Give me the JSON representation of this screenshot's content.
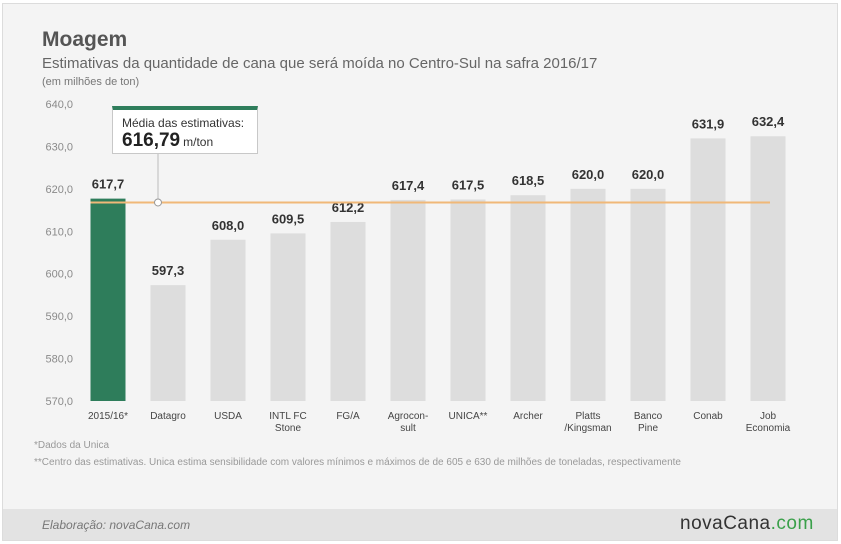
{
  "title": "Moagem",
  "subtitle": "Estimativas da quantidade de cana que será moída no Centro-Sul na safra 2016/17",
  "unit_note": "(em milhões de ton)",
  "callout": {
    "label": "Média das estimativas:",
    "value": "616,79",
    "unit": "m/ton"
  },
  "footnotes": [
    "*Dados da Unica",
    "**Centro das estimativas. Unica estima sensibilidade com valores mínimos e máximos de de 605 e 630 de milhões de toneladas, respectivamente"
  ],
  "credit": "Elaboração: novaCana.com",
  "brand": {
    "name": "nova",
    "dot": "Cana",
    "suffix": ".com"
  },
  "colors": {
    "highlight_bar": "#2e7d5b",
    "bar": "#dddddd",
    "average_line": "#f0b878",
    "axis_text": "#8a8a8a",
    "value_label": "#333333"
  },
  "chart_data": {
    "type": "bar",
    "categories": [
      [
        "2015/16*"
      ],
      [
        "Datagro"
      ],
      [
        "USDA"
      ],
      [
        "INTL FC",
        "Stone"
      ],
      [
        "FG/A"
      ],
      [
        "Agrocon-",
        "sult"
      ],
      [
        "UNICA**"
      ],
      [
        "Archer"
      ],
      [
        "Platts",
        "/Kingsman"
      ],
      [
        "Banco",
        "Pine"
      ],
      [
        "Conab"
      ],
      [
        "Job",
        "Economia"
      ]
    ],
    "values": [
      617.7,
      597.3,
      608.0,
      609.5,
      612.2,
      617.4,
      617.5,
      618.5,
      620.0,
      620.0,
      631.9,
      632.4
    ],
    "value_labels": [
      "617,7",
      "597,3",
      "608,0",
      "609,5",
      "612,2",
      "617,4",
      "617,5",
      "618,5",
      "620,0",
      "620,0",
      "631,9",
      "632,4"
    ],
    "highlight_index": 0,
    "average": 616.79,
    "ylim": [
      570,
      640
    ],
    "yticks": [
      570,
      580,
      590,
      600,
      610,
      620,
      630,
      640
    ],
    "ytick_labels": [
      "570,0",
      "580,0",
      "590,0",
      "600,0",
      "610,0",
      "620,0",
      "630,0",
      "640,0"
    ],
    "grid": false,
    "legend": "none"
  }
}
